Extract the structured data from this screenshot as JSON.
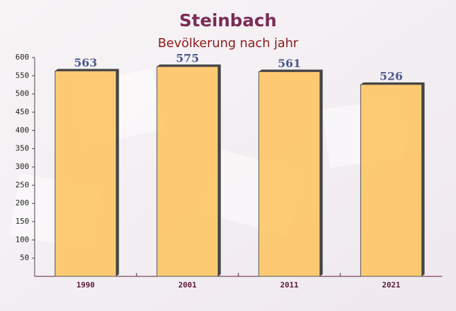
{
  "chart_data": {
    "type": "bar",
    "title": "Steinbach",
    "subtitle": "Bevölkerung nach jahr",
    "categories": [
      "1990",
      "2001",
      "2011",
      "2021"
    ],
    "values": [
      563,
      575,
      561,
      526
    ],
    "color": "#fec35c",
    "ylim": [
      0,
      600
    ],
    "yticks": [
      50,
      100,
      150,
      200,
      250,
      300,
      350,
      400,
      450,
      500,
      550,
      600
    ]
  }
}
